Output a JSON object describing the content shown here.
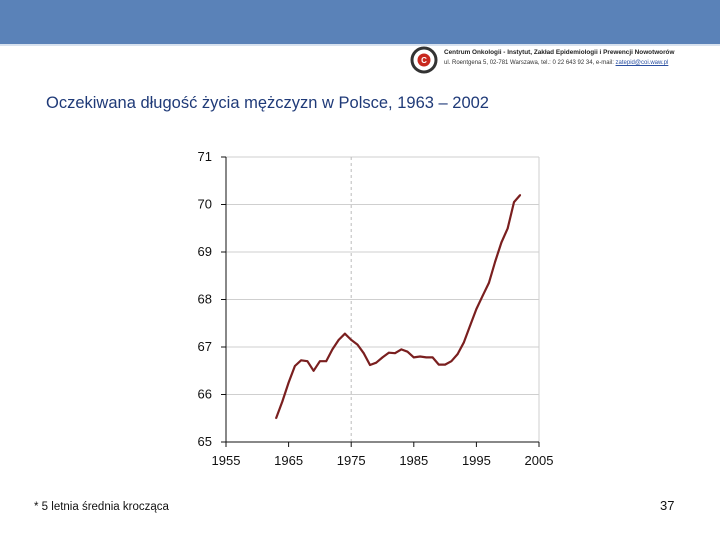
{
  "header": {
    "logo_line1": "Centrum Onkologii - Instytut, Zakład Epidemiologii i Prewencji Nowotworów",
    "logo_line2": "ul. Roentgena 5, 02-781 Warszawa, tel.: 0 22 643 92 34, e-mail: ",
    "logo_email": "zatepid@coi.waw.pl",
    "colors": {
      "bar": "#5a82b8",
      "title": "#1f3a78"
    }
  },
  "slide": {
    "title": "Oczekiwana długość życia mężczyzn w Polsce, 1963 – 2002",
    "footnote": "* 5 letnia średnia krocząca",
    "page_number": "37"
  },
  "chart_data": {
    "type": "line",
    "title": "",
    "xlabel": "",
    "ylabel": "",
    "xlim": [
      1955,
      2005
    ],
    "ylim": [
      65,
      71
    ],
    "xticks": [
      1955,
      1965,
      1975,
      1985,
      1995,
      2005
    ],
    "yticks": [
      65,
      66,
      67,
      68,
      69,
      70,
      71
    ],
    "grid": {
      "horizontal": true,
      "vertical": false
    },
    "reference_line": {
      "x": 1975,
      "style": "dashed",
      "color": "#bbbbbb"
    },
    "series": [
      {
        "color": "#7a1f1f",
        "x": [
          1963,
          1964,
          1965,
          1966,
          1967,
          1968,
          1969,
          1970,
          1971,
          1972,
          1973,
          1974,
          1975,
          1976,
          1977,
          1978,
          1979,
          1980,
          1981,
          1982,
          1983,
          1984,
          1985,
          1986,
          1987,
          1988,
          1989,
          1990,
          1991,
          1992,
          1993,
          1994,
          1995,
          1996,
          1997,
          1998,
          1999,
          2000,
          2001,
          2002
        ],
        "y": [
          65.5,
          65.85,
          66.25,
          66.6,
          66.72,
          66.7,
          66.5,
          66.7,
          66.7,
          66.95,
          67.15,
          67.28,
          67.15,
          67.05,
          66.87,
          66.62,
          66.67,
          66.78,
          66.88,
          66.87,
          66.95,
          66.9,
          66.78,
          66.8,
          66.78,
          66.78,
          66.63,
          66.63,
          66.7,
          66.85,
          67.1,
          67.45,
          67.8,
          68.08,
          68.35,
          68.8,
          69.2,
          69.5,
          70.05,
          70.2
        ]
      }
    ]
  }
}
